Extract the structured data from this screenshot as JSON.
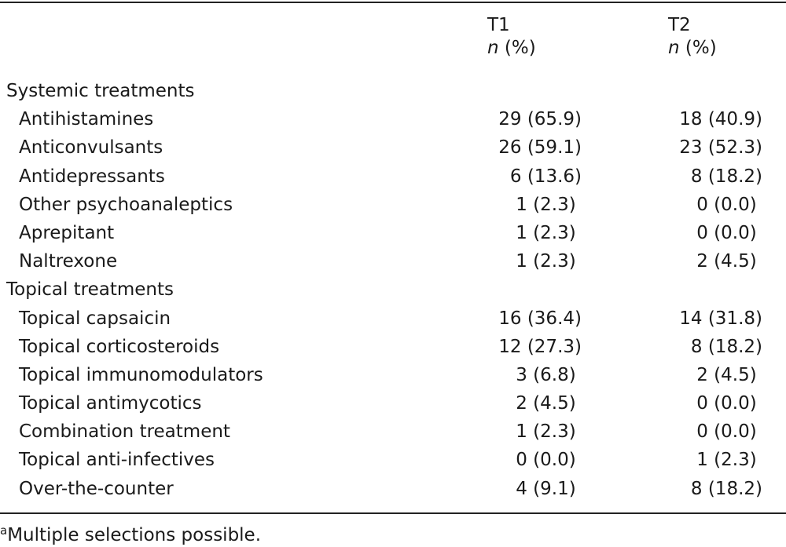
{
  "table": {
    "columns": [
      {
        "label": "T1",
        "unit_italic": "n",
        "unit_rest": " (%)"
      },
      {
        "label": "T2",
        "unit_italic": "n",
        "unit_rest": " (%)"
      }
    ],
    "sections": [
      {
        "title": "Systemic treatments",
        "rows": [
          {
            "label": "Antihistamines",
            "t1": "29 (65.9)",
            "t2": "18 (40.9)"
          },
          {
            "label": "Anticonvulsants",
            "t1": "26 (59.1)",
            "t2": "23 (52.3)"
          },
          {
            "label": "Antidepressants",
            "t1": "6 (13.6)",
            "t2": "8 (18.2)"
          },
          {
            "label": "Other psychoanaleptics",
            "t1": "1 (2.3) ",
            "t2": "0 (0.0) "
          },
          {
            "label": "Aprepitant",
            "t1": "1 (2.3) ",
            "t2": "0 (0.0) "
          },
          {
            "label": "Naltrexone",
            "t1": "1 (2.3) ",
            "t2": "2 (4.5) "
          }
        ]
      },
      {
        "title": "Topical treatments",
        "rows": [
          {
            "label": "Topical capsaicin",
            "t1": "16 (36.4)",
            "t2": "14 (31.8)"
          },
          {
            "label": "Topical corticosteroids",
            "t1": "12 (27.3)",
            "t2": "8 (18.2)"
          },
          {
            "label": "Topical immunomodulators",
            "t1": "3 (6.8) ",
            "t2": "2 (4.5) "
          },
          {
            "label": "Topical antimycotics",
            "t1": "2 (4.5) ",
            "t2": "0 (0.0) "
          },
          {
            "label": "Combination treatment",
            "t1": "1 (2.3) ",
            "t2": "0 (0.0) "
          },
          {
            "label": "Topical anti-infectives",
            "t1": "0 (0.0) ",
            "t2": "1 (2.3) "
          },
          {
            "label": "Over-the-counter",
            "t1": "4 (9.1) ",
            "t2": "8 (18.2)"
          }
        ]
      }
    ],
    "footnote": {
      "mark": "a",
      "text": "Multiple selections possible."
    }
  }
}
